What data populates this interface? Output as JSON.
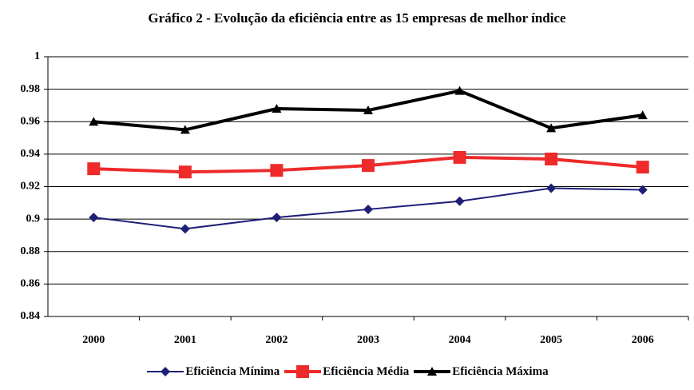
{
  "chart_data": {
    "type": "line",
    "title": "Gráfico 2 - Evolução da eficiência entre as 15 empresas de melhor índice",
    "categories": [
      "2000",
      "2001",
      "2002",
      "2003",
      "2004",
      "2005",
      "2006"
    ],
    "series": [
      {
        "name": "Eficiência Mínima",
        "color": "#1f1f78",
        "values": [
          0.901,
          0.894,
          0.901,
          0.906,
          0.911,
          0.919,
          0.918
        ]
      },
      {
        "name": "Eficiência Média",
        "color": "#ee2a2a",
        "values": [
          0.931,
          0.929,
          0.93,
          0.933,
          0.938,
          0.937,
          0.932
        ]
      },
      {
        "name": "Eficiência Máxima",
        "color": "#000000",
        "values": [
          0.96,
          0.955,
          0.968,
          0.967,
          0.979,
          0.956,
          0.964
        ]
      }
    ],
    "ylim": [
      0.84,
      1
    ],
    "yticks": [
      0.84,
      0.86,
      0.88,
      0.9,
      0.92,
      0.94,
      0.96,
      0.98,
      1
    ],
    "grid": true,
    "legend": "bottom"
  }
}
